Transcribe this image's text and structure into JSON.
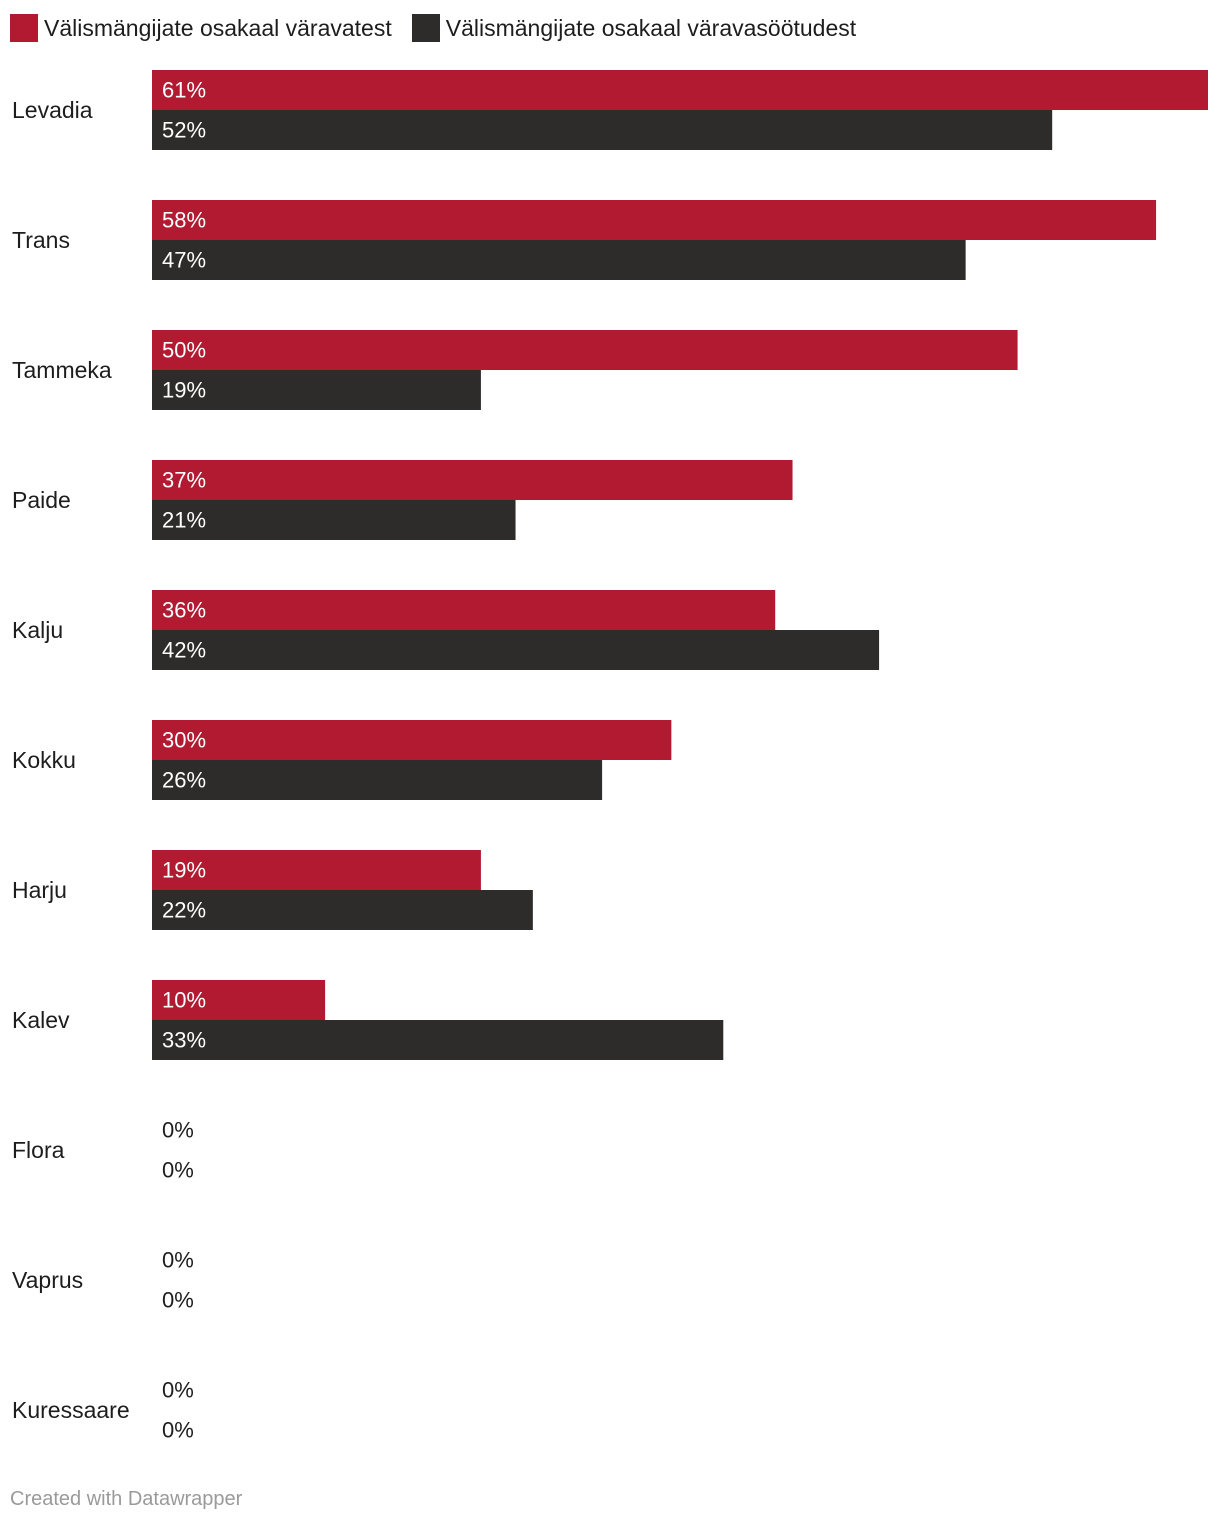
{
  "chart_data": {
    "type": "bar",
    "orientation": "horizontal",
    "categories": [
      "Levadia",
      "Trans",
      "Tammeka",
      "Paide",
      "Kalju",
      "Kokku",
      "Harju",
      "Kalev",
      "Flora",
      "Vaprus",
      "Kuressaare"
    ],
    "series": [
      {
        "name": "Välismängijate osakaal väravatest",
        "color": "#b21a31",
        "values": [
          61,
          58,
          50,
          37,
          36,
          30,
          19,
          10,
          0,
          0,
          0
        ]
      },
      {
        "name": "Välismängijate osakaal väravasöötudest",
        "color": "#2e2c2a",
        "values": [
          52,
          47,
          19,
          21,
          42,
          26,
          22,
          33,
          0,
          0,
          0
        ]
      }
    ],
    "value_suffix": "%",
    "xlim": [
      0,
      61
    ],
    "grid": false,
    "legend_position": "top-left"
  },
  "footer": {
    "credit": "Created with Datawrapper"
  }
}
